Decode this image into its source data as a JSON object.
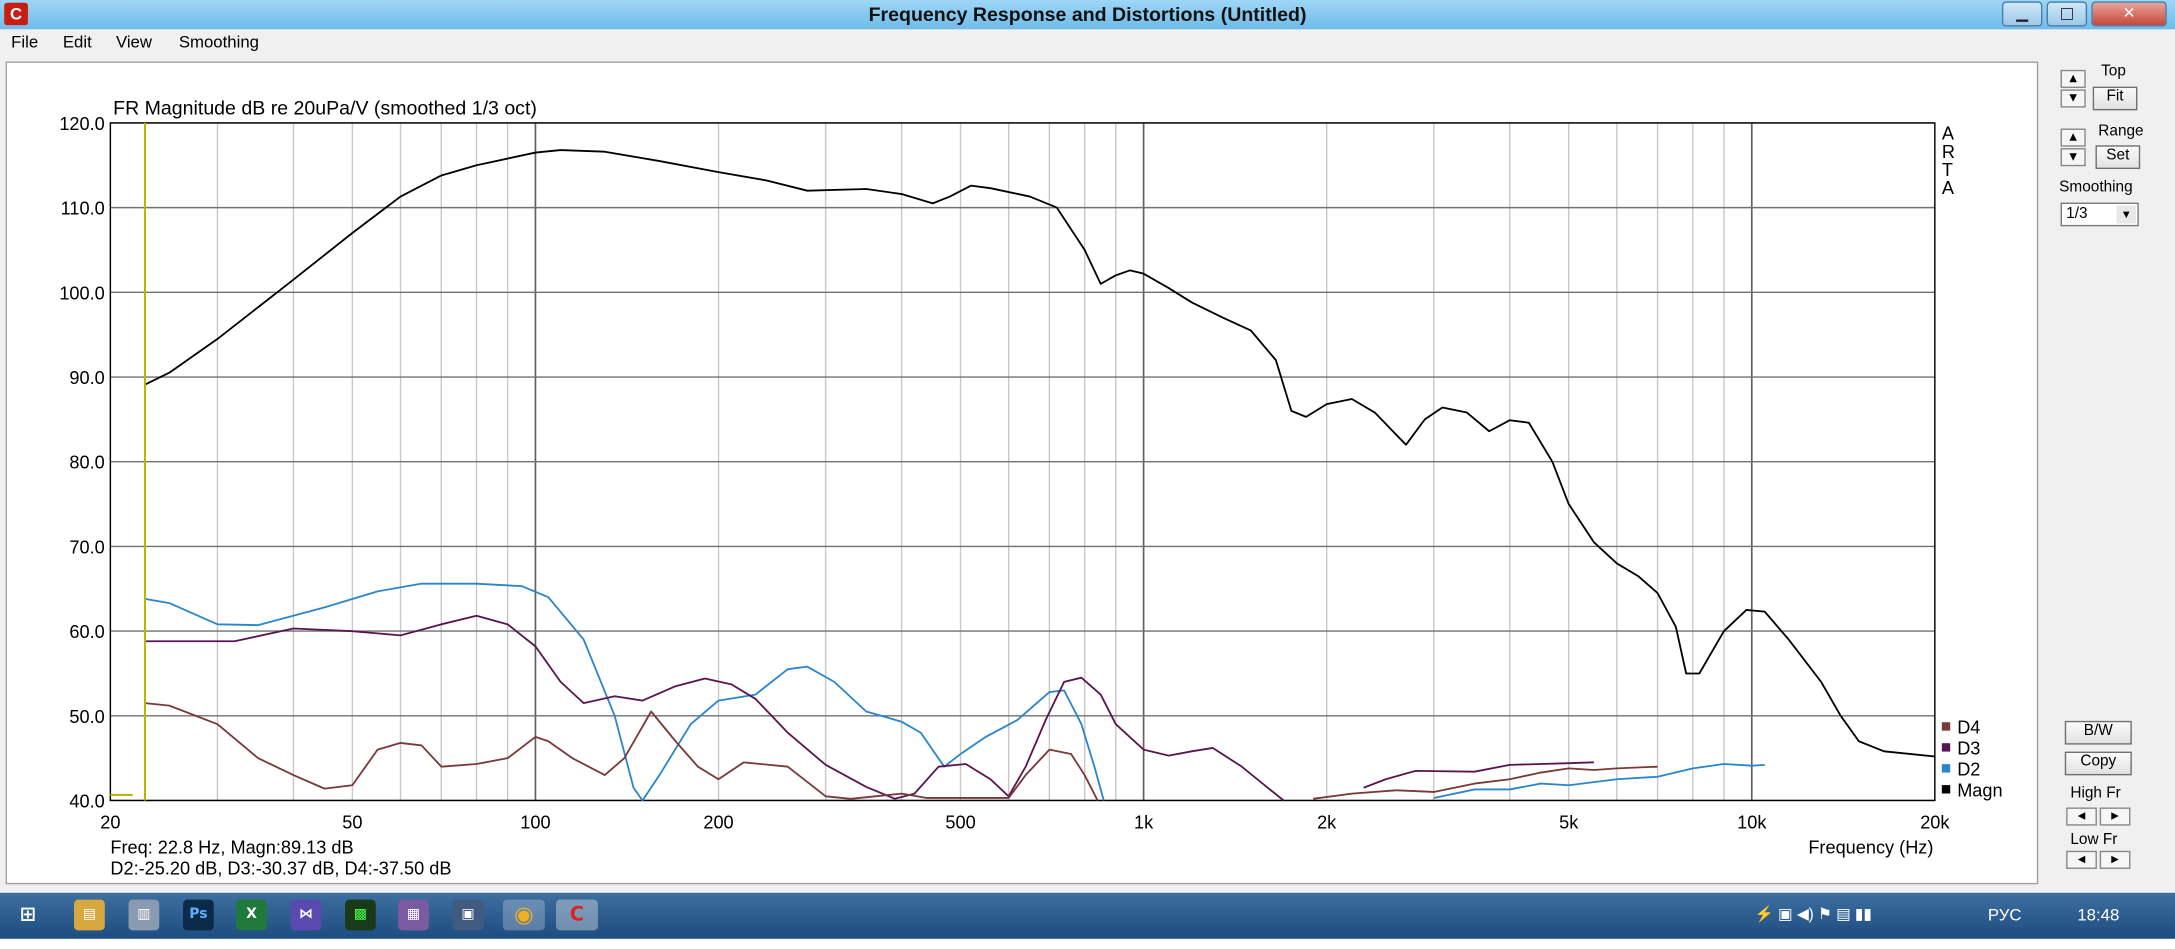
{
  "window": {
    "title": "Frequency Response and Distortions (Untitled)",
    "app_icon": "C",
    "minimize": "▁",
    "maximize": "□",
    "close": "✕"
  },
  "menu": [
    "File",
    "Edit",
    "View",
    "Smoothing"
  ],
  "controls": {
    "top_label": "Top",
    "fit_button": "Fit",
    "range_label": "Range",
    "set_button": "Set",
    "smoothing_label": "Smoothing",
    "smoothing_value": "1/3",
    "bw_button": "B/W",
    "copy_button": "Copy",
    "high_fr_label": "High Fr",
    "low_fr_label": "Low Fr"
  },
  "readout": {
    "line1": "Freq: 22.8 Hz, Magn:89.13 dB",
    "line2": "D2:-25.20 dB, D3:-30.37 dB, D4:-37.50 dB"
  },
  "watermark": [
    "A",
    "R",
    "T",
    "A"
  ],
  "taskbar": {
    "items": [
      "⊞",
      "▤",
      "▥",
      "Ps",
      "X",
      "⋈",
      "▩",
      "▦",
      "▣",
      "◉",
      "C"
    ],
    "tray_lang": "РУС",
    "clock": "18:48"
  },
  "colors": {
    "magn": "#000000",
    "d2": "#2a86c8",
    "d3": "#5a1550",
    "d4": "#7a3838",
    "cursor": "#b8b800"
  },
  "chart_data": {
    "type": "line",
    "title": "FR Magnitude dB re 20uPa/V (smoothed 1/3 oct)",
    "xlabel": "Frequency (Hz)",
    "ylabel": "",
    "x_scale": "log",
    "xlim": [
      20,
      20000
    ],
    "ylim": [
      40,
      120
    ],
    "grid": true,
    "legend_position": "bottom-right",
    "x_ticks": [
      "20",
      "50",
      "100",
      "200",
      "500",
      "1k",
      "2k",
      "5k",
      "10k",
      "20k"
    ],
    "y_ticks": [
      "40.0",
      "50.0",
      "60.0",
      "70.0",
      "80.0",
      "90.0",
      "100.0",
      "110.0",
      "120.0"
    ],
    "cursor_freq": 22.8,
    "legend": [
      "D4",
      "D3",
      "D2",
      "Magn"
    ],
    "series": [
      {
        "name": "Magn",
        "color": "#000000",
        "points": [
          [
            22.8,
            89.1
          ],
          [
            25,
            90.5
          ],
          [
            30,
            94.5
          ],
          [
            40,
            101.5
          ],
          [
            50,
            107
          ],
          [
            60,
            111.3
          ],
          [
            70,
            113.8
          ],
          [
            80,
            115
          ],
          [
            100,
            116.5
          ],
          [
            110,
            116.8
          ],
          [
            130,
            116.6
          ],
          [
            160,
            115.5
          ],
          [
            200,
            114.2
          ],
          [
            240,
            113.2
          ],
          [
            280,
            112
          ],
          [
            350,
            112.2
          ],
          [
            400,
            111.6
          ],
          [
            450,
            110.5
          ],
          [
            480,
            111.3
          ],
          [
            520,
            112.6
          ],
          [
            560,
            112.3
          ],
          [
            650,
            111.3
          ],
          [
            720,
            110
          ],
          [
            800,
            105
          ],
          [
            850,
            101
          ],
          [
            900,
            102
          ],
          [
            950,
            102.6
          ],
          [
            1000,
            102.2
          ],
          [
            1100,
            100.5
          ],
          [
            1200,
            98.8
          ],
          [
            1350,
            97
          ],
          [
            1500,
            95.5
          ],
          [
            1650,
            92
          ],
          [
            1750,
            86
          ],
          [
            1850,
            85.3
          ],
          [
            2000,
            86.8
          ],
          [
            2200,
            87.4
          ],
          [
            2400,
            85.8
          ],
          [
            2700,
            82
          ],
          [
            2900,
            85
          ],
          [
            3100,
            86.4
          ],
          [
            3400,
            85.8
          ],
          [
            3700,
            83.6
          ],
          [
            4000,
            84.9
          ],
          [
            4300,
            84.6
          ],
          [
            4700,
            80
          ],
          [
            5000,
            75
          ],
          [
            5500,
            70.5
          ],
          [
            6000,
            68
          ],
          [
            6500,
            66.5
          ],
          [
            7000,
            64.5
          ],
          [
            7500,
            60.5
          ],
          [
            7800,
            55
          ],
          [
            8200,
            55
          ],
          [
            9000,
            60
          ],
          [
            9800,
            62.5
          ],
          [
            10500,
            62.3
          ],
          [
            11500,
            59
          ],
          [
            13000,
            54
          ],
          [
            14000,
            50
          ],
          [
            15000,
            47
          ],
          [
            16500,
            45.8
          ],
          [
            20000,
            45.2
          ]
        ]
      },
      {
        "name": "D2",
        "color": "#2a86c8",
        "points": [
          [
            22.8,
            63.8
          ],
          [
            25,
            63.3
          ],
          [
            30,
            60.8
          ],
          [
            35,
            60.7
          ],
          [
            45,
            62.8
          ],
          [
            55,
            64.7
          ],
          [
            65,
            65.6
          ],
          [
            80,
            65.6
          ],
          [
            95,
            65.3
          ],
          [
            105,
            64
          ],
          [
            120,
            59
          ],
          [
            135,
            50
          ],
          [
            145,
            41.5
          ],
          [
            150,
            40
          ],
          [
            160,
            43
          ],
          [
            180,
            49
          ],
          [
            200,
            51.8
          ],
          [
            230,
            52.5
          ],
          [
            260,
            55.5
          ],
          [
            280,
            55.8
          ],
          [
            310,
            54
          ],
          [
            350,
            50.5
          ],
          [
            400,
            49.3
          ],
          [
            430,
            48
          ],
          [
            470,
            44
          ],
          [
            500,
            45.5
          ],
          [
            550,
            47.5
          ],
          [
            620,
            49.5
          ],
          [
            700,
            52.8
          ],
          [
            740,
            53
          ],
          [
            790,
            49
          ],
          [
            830,
            44
          ],
          [
            860,
            40
          ]
        ]
      },
      {
        "name": "D2",
        "color": "#2a86c8",
        "points": [
          [
            3000,
            40.3
          ],
          [
            3500,
            41.3
          ],
          [
            4000,
            41.3
          ],
          [
            4500,
            42
          ],
          [
            5000,
            41.8
          ],
          [
            6000,
            42.5
          ],
          [
            7000,
            42.8
          ],
          [
            8000,
            43.8
          ],
          [
            9000,
            44.3
          ],
          [
            10000,
            44.1
          ],
          [
            10500,
            44.2
          ]
        ]
      },
      {
        "name": "D3",
        "color": "#5a1550",
        "points": [
          [
            22.8,
            58.8
          ],
          [
            25,
            58.8
          ],
          [
            32,
            58.8
          ],
          [
            40,
            60.3
          ],
          [
            50,
            60
          ],
          [
            60,
            59.5
          ],
          [
            70,
            60.8
          ],
          [
            80,
            61.8
          ],
          [
            90,
            60.8
          ],
          [
            100,
            58.2
          ],
          [
            110,
            54
          ],
          [
            120,
            51.5
          ],
          [
            135,
            52.3
          ],
          [
            150,
            51.8
          ],
          [
            170,
            53.5
          ],
          [
            190,
            54.4
          ],
          [
            210,
            53.7
          ],
          [
            230,
            52
          ],
          [
            260,
            48
          ],
          [
            300,
            44.2
          ],
          [
            350,
            41.6
          ],
          [
            390,
            40.2
          ],
          [
            420,
            40.8
          ],
          [
            460,
            44
          ],
          [
            510,
            44.3
          ],
          [
            560,
            42.5
          ],
          [
            600,
            40.5
          ],
          [
            640,
            44
          ],
          [
            690,
            49.5
          ],
          [
            740,
            54
          ],
          [
            790,
            54.5
          ],
          [
            850,
            52.5
          ],
          [
            900,
            49
          ],
          [
            1000,
            46
          ],
          [
            1100,
            45.3
          ],
          [
            1200,
            45.8
          ],
          [
            1300,
            46.2
          ],
          [
            1450,
            44
          ],
          [
            1600,
            41.5
          ],
          [
            1700,
            40
          ]
        ]
      },
      {
        "name": "D4",
        "color": "#7a3838",
        "points": [
          [
            22.8,
            51.5
          ],
          [
            25,
            51.2
          ],
          [
            30,
            49
          ],
          [
            35,
            45
          ],
          [
            40,
            43
          ],
          [
            45,
            41.4
          ],
          [
            50,
            41.8
          ],
          [
            55,
            46
          ],
          [
            60,
            46.8
          ],
          [
            65,
            46.5
          ],
          [
            70,
            44
          ],
          [
            80,
            44.3
          ],
          [
            90,
            45
          ],
          [
            100,
            47.5
          ],
          [
            105,
            47
          ],
          [
            115,
            45
          ],
          [
            130,
            43
          ],
          [
            140,
            45
          ],
          [
            155,
            50.5
          ],
          [
            170,
            47
          ],
          [
            185,
            44
          ],
          [
            200,
            42.5
          ],
          [
            220,
            44.5
          ],
          [
            260,
            44
          ],
          [
            300,
            40.5
          ],
          [
            330,
            40.2
          ],
          [
            400,
            40.8
          ],
          [
            440,
            40.3
          ],
          [
            600,
            40.3
          ],
          [
            640,
            43
          ],
          [
            700,
            46
          ],
          [
            760,
            45.5
          ],
          [
            800,
            43
          ],
          [
            840,
            40
          ]
        ]
      },
      {
        "name": "D4",
        "color": "#7a3838",
        "points": [
          [
            1900,
            40.2
          ],
          [
            2200,
            40.8
          ],
          [
            2600,
            41.2
          ],
          [
            3000,
            41
          ],
          [
            3500,
            42
          ],
          [
            4000,
            42.5
          ],
          [
            4500,
            43.3
          ],
          [
            5000,
            43.8
          ],
          [
            5500,
            43.6
          ],
          [
            6000,
            43.8
          ],
          [
            7000,
            44
          ]
        ]
      },
      {
        "name": "D3",
        "color": "#5a1550",
        "points": [
          [
            2300,
            41.5
          ],
          [
            2500,
            42.5
          ],
          [
            2800,
            43.5
          ],
          [
            3500,
            43.4
          ],
          [
            4000,
            44.2
          ],
          [
            4500,
            44.3
          ],
          [
            5000,
            44.4
          ],
          [
            5500,
            44.5
          ]
        ]
      }
    ]
  }
}
